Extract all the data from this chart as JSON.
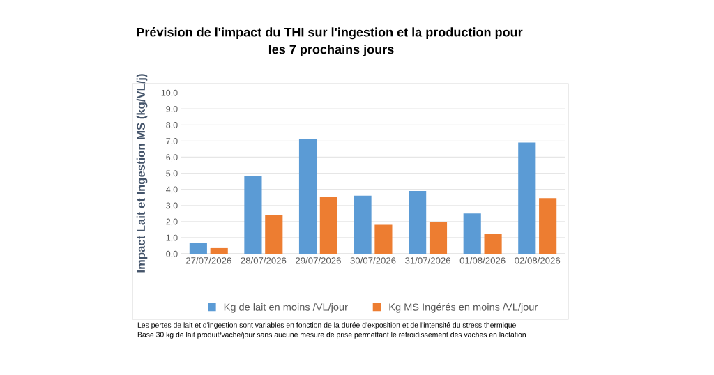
{
  "chart_data": {
    "type": "bar",
    "title": "Prévision de l'impact du THI sur l'ingestion et la production pour \nles 7 prochains jours",
    "ylabel": "Impact Lait et Ingestion MS (kg/VL/j)",
    "categories": [
      "27/07/2026",
      "28/07/2026",
      "29/07/2026",
      "30/07/2026",
      "31/07/2026",
      "01/08/2026",
      "02/08/2026"
    ],
    "series": [
      {
        "name": "Kg de lait en moins /VL/jour",
        "color": "#5b9bd5",
        "values": [
          0.65,
          4.8,
          7.1,
          3.6,
          3.9,
          2.5,
          6.9
        ]
      },
      {
        "name": "Kg MS Ingérés en moins /VL/jour",
        "color": "#ed7d31",
        "values": [
          0.35,
          2.4,
          3.55,
          1.8,
          1.95,
          1.25,
          3.45
        ]
      }
    ],
    "ylim": [
      0,
      10
    ],
    "yticks": [
      {
        "value": 0,
        "label": "0,0"
      },
      {
        "value": 1,
        "label": "1,0"
      },
      {
        "value": 2,
        "label": "2,0"
      },
      {
        "value": 3,
        "label": "3,0"
      },
      {
        "value": 4,
        "label": "4,0"
      },
      {
        "value": 5,
        "label": "5,0"
      },
      {
        "value": 6,
        "label": "6,0"
      },
      {
        "value": 7,
        "label": "7,0"
      },
      {
        "value": 8,
        "label": "8,0"
      },
      {
        "value": 9,
        "label": "9,0"
      },
      {
        "value": 10,
        "label": "10,0"
      }
    ],
    "grid": "y",
    "legend": "bottom",
    "annotations": [
      "Les pertes de lait et d'ingestion sont variables en fonction de la durée d'exposition et de l'intensité du stress thermique",
      "Base 30 kg de lait produit/vache/jour sans aucune mesure de prise permettant le refroidissement des vaches en lactation"
    ]
  }
}
